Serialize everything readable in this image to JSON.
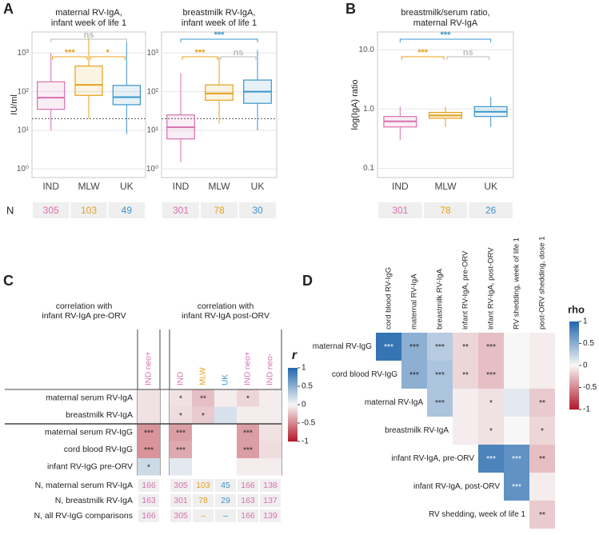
{
  "chart_data": [
    {
      "type": "box",
      "panel": "A",
      "title": [
        "maternal RV-IgA,",
        "infant week of life 1"
      ],
      "ylabel": "IU/ml",
      "log": true,
      "ylim": [
        0.6,
        3500
      ],
      "yticks": [
        {
          "value": 1,
          "label": "10⁰"
        },
        {
          "value": 10,
          "label": "10¹"
        },
        {
          "value": 100,
          "label": "10²"
        },
        {
          "value": 1000,
          "label": "10³"
        }
      ],
      "grid": true,
      "reference_line": 20,
      "categories": [
        "IND",
        "MLW",
        "UK"
      ],
      "colors": [
        "#d870ad",
        "#e5a11c",
        "#3b95c9"
      ],
      "boxes": [
        {
          "min": 10,
          "q1": 35,
          "median": 70,
          "q3": 180,
          "max": 1000
        },
        {
          "min": 20,
          "q1": 80,
          "median": 150,
          "q3": 460,
          "max": 2500
        },
        {
          "min": 8,
          "q1": 46,
          "median": 72,
          "q3": 145,
          "max": 2000
        }
      ],
      "brackets": [
        {
          "label": "***",
          "color": "#e5a11c"
        },
        {
          "label": "*",
          "color": "#e5a11c"
        },
        {
          "label": "ns",
          "color": "#bbbbbb"
        }
      ],
      "n_label": "N",
      "n": [
        305,
        103,
        49
      ]
    },
    {
      "type": "box",
      "title": [
        "breastmilk RV-IgA,",
        "infant week of life 1"
      ],
      "log": true,
      "ylim": [
        0.6,
        3500
      ],
      "yticks": [
        {
          "value": 1,
          "label": "10⁰"
        },
        {
          "value": 10,
          "label": "10¹"
        },
        {
          "value": 100,
          "label": "10²"
        },
        {
          "value": 1000,
          "label": "10³"
        }
      ],
      "grid": true,
      "reference_line": 20,
      "categories": [
        "IND",
        "MLW",
        "UK"
      ],
      "colors": [
        "#d870ad",
        "#e5a11c",
        "#3b95c9"
      ],
      "boxes": [
        {
          "min": 1.5,
          "q1": 6,
          "median": 12,
          "q3": 25,
          "max": 300
        },
        {
          "min": 15,
          "q1": 60,
          "median": 90,
          "q3": 150,
          "max": 800
        },
        {
          "min": 10,
          "q1": 50,
          "median": 100,
          "q3": 200,
          "max": 1200
        }
      ],
      "brackets": [
        {
          "label": "***",
          "color": "#3b95c9"
        },
        {
          "label": "***",
          "color": "#e5a11c"
        },
        {
          "label": "ns",
          "color": "#bbbbbb"
        }
      ],
      "n": [
        301,
        78,
        30
      ]
    },
    {
      "type": "box",
      "panel": "B",
      "title": [
        "breastmilk/serum ratio,",
        "maternal RV-IgA"
      ],
      "ylabel": "log(IgA) ratio",
      "log": true,
      "ylim": [
        0.07,
        20
      ],
      "yticks": [
        0.1,
        {
          "value": 1,
          "label": "1.0"
        },
        {
          "value": 10,
          "label": "10.0"
        }
      ],
      "grid": true,
      "categories": [
        "IND",
        "MLW",
        "UK"
      ],
      "colors": [
        "#d870ad",
        "#e5a11c",
        "#3b95c9"
      ],
      "boxes": [
        {
          "min": 0.3,
          "q1": 0.5,
          "median": 0.62,
          "q3": 0.75,
          "max": 1.1
        },
        {
          "min": 0.5,
          "q1": 0.7,
          "median": 0.78,
          "q3": 0.88,
          "max": 1.1
        },
        {
          "min": 0.5,
          "q1": 0.75,
          "median": 0.9,
          "q3": 1.1,
          "max": 1.6
        }
      ],
      "brackets": [
        {
          "label": "***",
          "color": "#3b95c9"
        },
        {
          "label": "***",
          "color": "#e5a11c"
        },
        {
          "label": "ns",
          "color": "#bbbbbb"
        }
      ],
      "n": [
        301,
        78,
        26
      ]
    },
    {
      "type": "heatmap",
      "panel": "C",
      "groups": [
        {
          "title": [
            "correlation with",
            "infant RV-IgA pre-ORV"
          ],
          "columns": [
            "IND neo+"
          ],
          "column_colors": [
            "#d870ad"
          ]
        },
        {
          "title": [
            "correlation with",
            "infant RV-IgA post-ORV"
          ],
          "columns": [
            "IND",
            "MLW",
            "UK",
            "IND neo+",
            "IND neo-"
          ],
          "column_colors": [
            "#d870ad",
            "#e5a11c",
            "#3b95c9",
            "#d870ad",
            "#d870ad"
          ]
        }
      ],
      "rows": [
        "maternal serum RV-IgA",
        "breastmilk RV-IgA",
        "maternal serum RV-IgG",
        "cord blood RV-IgG",
        "infant RV-IgG pre-ORV"
      ],
      "values": [
        [
          -0.1,
          -0.1,
          -0.25,
          -0.05,
          -0.15,
          -0.05
        ],
        [
          -0.1,
          -0.12,
          -0.2,
          0.15,
          -0.05,
          -0.05
        ],
        [
          -0.45,
          -0.4,
          null,
          null,
          -0.4,
          -0.1
        ],
        [
          -0.45,
          -0.35,
          null,
          null,
          -0.4,
          -0.12
        ],
        [
          0.2,
          0.1,
          null,
          null,
          -0.05,
          -0.05
        ]
      ],
      "labels": [
        [
          null,
          "*",
          "**",
          null,
          "*",
          null
        ],
        [
          null,
          "*",
          "*",
          null,
          null,
          null
        ],
        [
          "***",
          "***",
          null,
          null,
          "***",
          null
        ],
        [
          "***",
          "***",
          null,
          null,
          "***",
          null
        ],
        [
          "*",
          null,
          null,
          null,
          null,
          null
        ]
      ],
      "colorbar_title": "r",
      "clim": [
        -1,
        1
      ],
      "cticks": [
        -1,
        -0.5,
        0,
        0.5,
        1
      ],
      "colormap": [
        "#b2182b",
        "#f7f7f7",
        "#2166ac"
      ],
      "n_table": [
        {
          "label": "N, maternal serum RV-IgA",
          "values": [
            166,
            305,
            103,
            45,
            166,
            138
          ]
        },
        {
          "label": "N, breastmilk RV-IgA",
          "values": [
            163,
            301,
            78,
            29,
            163,
            137
          ]
        },
        {
          "label": "N, all RV-IgG comparisons",
          "values": [
            166,
            305,
            "–",
            "–",
            166,
            139
          ]
        }
      ]
    },
    {
      "type": "triangle",
      "panel": "D",
      "columns": [
        "cord blood RV-IgG",
        "maternal RV-IgA",
        "breastmilk RV-IgA",
        "infant RV-IgA, pre-ORV",
        "infant RV-IgA, post-ORV",
        "RV shedding, week of life 1",
        "post-ORV shedding, dose 1"
      ],
      "rows": [
        "maternal RV-IgG",
        "cord blood RV-IgG",
        "maternal RV-IgA",
        "breastmilk RV-IgA",
        "infant RV-IgA, pre-ORV",
        "infant RV-IgA, post-ORV",
        "RV shedding, week of life 1"
      ],
      "values": [
        [
          0.9,
          0.5,
          0.3,
          -0.15,
          -0.25,
          0.0,
          -0.05
        ],
        [
          null,
          0.5,
          0.35,
          -0.15,
          -0.25,
          0.0,
          -0.05
        ],
        [
          null,
          null,
          0.35,
          -0.05,
          -0.1,
          0.1,
          -0.2
        ],
        [
          null,
          null,
          null,
          -0.05,
          -0.1,
          0.0,
          -0.15
        ],
        [
          null,
          null,
          null,
          null,
          0.8,
          0.7,
          -0.25
        ],
        [
          null,
          null,
          null,
          null,
          null,
          0.7,
          -0.05
        ],
        [
          null,
          null,
          null,
          null,
          null,
          null,
          -0.2
        ]
      ],
      "labels": [
        [
          "***",
          "***",
          "***",
          "**",
          "***",
          null,
          null
        ],
        [
          null,
          "***",
          "***",
          "**",
          "***",
          null,
          null
        ],
        [
          null,
          null,
          "***",
          null,
          "*",
          null,
          "**"
        ],
        [
          null,
          null,
          null,
          null,
          "*",
          null,
          "*"
        ],
        [
          null,
          null,
          null,
          null,
          "***",
          "***",
          "**"
        ],
        [
          null,
          null,
          null,
          null,
          null,
          "***",
          null
        ],
        [
          null,
          null,
          null,
          null,
          null,
          null,
          "**"
        ]
      ],
      "colorbar_title": "rho",
      "clim": [
        -1,
        1
      ],
      "cticks": [
        -1,
        -0.5,
        0,
        0.5,
        1
      ],
      "colormap": [
        "#b2182b",
        "#f7f7f7",
        "#2166ac"
      ]
    }
  ]
}
